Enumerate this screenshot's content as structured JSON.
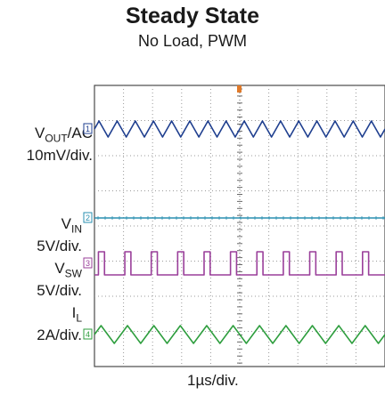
{
  "chart_data": {
    "type": "line",
    "title": "Steady State",
    "subtitle": "No Load, PWM",
    "xlabel": "1µs/div.",
    "grid": true,
    "channels": [
      {
        "id": "1",
        "name_main": "V",
        "name_sub": "OUT",
        "name_suffix": "/AC",
        "scale": "10mV/div.",
        "color": "#1f3f8f",
        "shape": "triangle",
        "cycles": 16
      },
      {
        "id": "2",
        "name_main": "V",
        "name_sub": "IN",
        "name_suffix": "",
        "scale": "5V/div.",
        "color": "#2a8fb0",
        "shape": "flat",
        "cycles": 0
      },
      {
        "id": "3",
        "name_main": "V",
        "name_sub": "SW",
        "name_suffix": "",
        "scale": "5V/div.",
        "color": "#9a3f9a",
        "shape": "square",
        "cycles": 11
      },
      {
        "id": "4",
        "name_main": "I",
        "name_sub": "L",
        "name_suffix": "",
        "scale": "2A/div.",
        "color": "#2e9e3e",
        "shape": "triangle",
        "cycles": 11
      }
    ]
  }
}
